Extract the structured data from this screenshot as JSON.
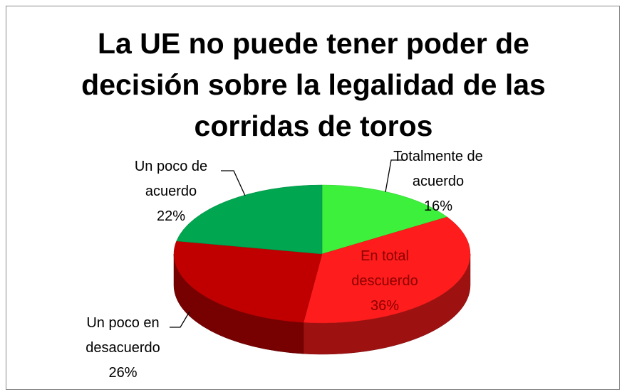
{
  "chart_data": {
    "type": "pie3d",
    "title": [
      "La UE no puede tener poder de",
      "decisión sobre la legalidad de las",
      "corridas de toros"
    ],
    "categories": [
      "Totalmente de acuerdo",
      "En total descuerdo",
      "Un poco en desacuerdo",
      "Un poco de acuerdo"
    ],
    "values": [
      16,
      36,
      26,
      22
    ],
    "value_labels": [
      "16%",
      "36%",
      "26%",
      "22%"
    ],
    "colors": [
      "#3cf03c",
      "#ff1c1c",
      "#c00000",
      "#00a650"
    ]
  }
}
